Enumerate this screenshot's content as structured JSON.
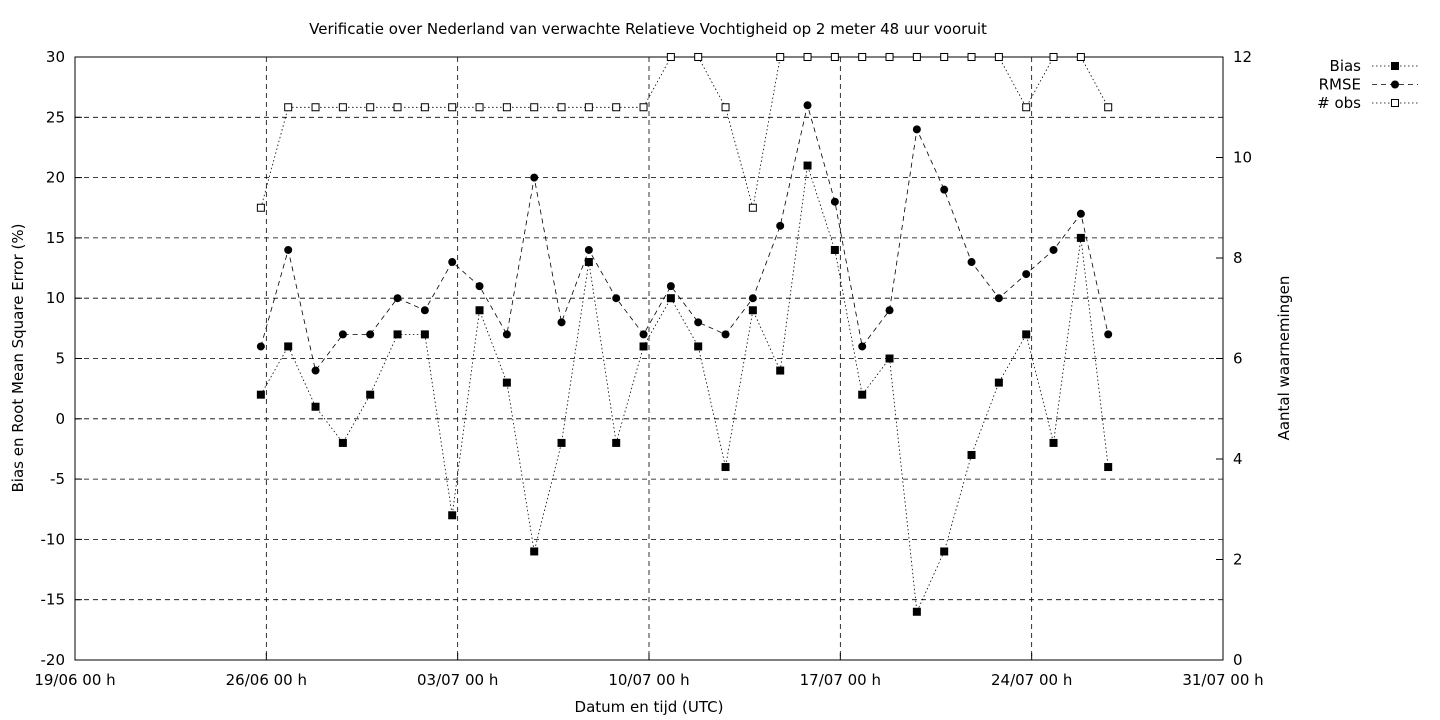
{
  "chart_data": {
    "type": "line",
    "title": "Verificatie over Nederland van verwachte Relatieve Vochtigheid op 2 meter 48 uur vooruit",
    "xlabel": "Datum en tijd (UTC)",
    "ylabel": "Bias en Root Mean Square Error (%)",
    "y2label": "Aantal waarnemingen",
    "x_range_days": [
      0,
      42
    ],
    "ylim": [
      -20,
      30
    ],
    "y2lim": [
      0,
      12
    ],
    "yticks": [
      -20,
      -15,
      -10,
      -5,
      0,
      5,
      10,
      15,
      20,
      25,
      30
    ],
    "y2ticks": [
      0,
      2,
      4,
      6,
      8,
      10,
      12
    ],
    "xticks": [
      {
        "day": 0,
        "label": "19/06 00 h"
      },
      {
        "day": 7,
        "label": "26/06 00 h"
      },
      {
        "day": 14,
        "label": "03/07 00 h"
      },
      {
        "day": 21,
        "label": "10/07 00 h"
      },
      {
        "day": 28,
        "label": "17/07 00 h"
      },
      {
        "day": 35,
        "label": "24/07 00 h"
      },
      {
        "day": 42,
        "label": "31/07 00 h"
      }
    ],
    "grid": true,
    "legend_position": "top-right-outside",
    "x_days": [
      6.8,
      7.8,
      8.8,
      9.8,
      10.8,
      11.8,
      12.8,
      13.8,
      14.8,
      15.8,
      16.8,
      17.8,
      18.8,
      19.8,
      20.8,
      21.8,
      22.8,
      23.8,
      24.8,
      25.8,
      26.8,
      27.8,
      28.8,
      29.8,
      30.8,
      31.8,
      32.8,
      33.8,
      34.8,
      35.8,
      36.8,
      37.8
    ],
    "series": [
      {
        "name": "Bias",
        "axis": "y1",
        "style": "dotted-filled-square",
        "values": [
          2,
          6,
          1,
          -2,
          2,
          7,
          7,
          -8,
          9,
          3,
          -11,
          -2,
          13,
          -2,
          6,
          10,
          6,
          -4,
          9,
          4,
          21,
          14,
          2,
          5,
          -16,
          -11,
          -3,
          3,
          7,
          -2,
          15,
          -4
        ]
      },
      {
        "name": "RMSE",
        "axis": "y1",
        "style": "dashed-filled-circle",
        "values": [
          6,
          14,
          4,
          7,
          7,
          10,
          9,
          13,
          11,
          7,
          20,
          8,
          14,
          10,
          7,
          11,
          8,
          7,
          10,
          16,
          26,
          18,
          6,
          9,
          24,
          19,
          13,
          10,
          12,
          14,
          17,
          7
        ]
      },
      {
        "name": "# obs",
        "axis": "y2",
        "style": "dotted-open-square",
        "values": [
          9,
          11,
          11,
          11,
          11,
          11,
          11,
          11,
          11,
          11,
          11,
          11,
          11,
          11,
          11,
          12,
          12,
          11,
          9,
          12,
          12,
          12,
          12,
          12,
          12,
          12,
          12,
          12,
          11,
          12,
          12,
          11
        ]
      }
    ]
  }
}
